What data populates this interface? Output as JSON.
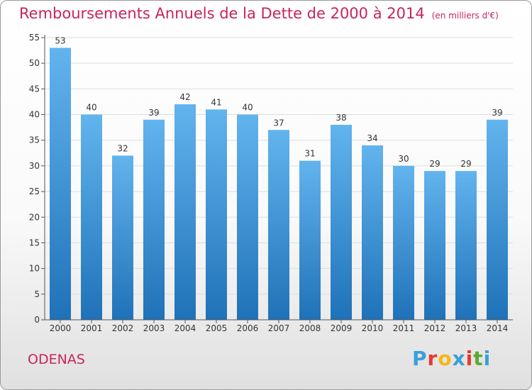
{
  "header": {
    "title": "Remboursements Annuels de la Dette de 2000 à 2014",
    "unit": "(en milliers d'€)"
  },
  "footer": {
    "city": "ODENAS",
    "logo_letters": [
      "P",
      "r",
      "o",
      "x",
      "i",
      "t",
      "i"
    ],
    "logo_colors": [
      "#3a9fd8",
      "#e8382e",
      "#f4b71b",
      "#3a9fd8",
      "#e8382e",
      "#5aaa32",
      "#3a9fd8"
    ]
  },
  "colors": {
    "title": "#c8245a",
    "bar_top": "#62b4ee",
    "bar_bottom": "#1f72b8",
    "axis": "#555555",
    "grid": "#dddddd"
  },
  "chart_data": {
    "type": "bar",
    "title": "Remboursements Annuels de la Dette de 2000 à 2014",
    "xlabel": "",
    "ylabel": "",
    "categories": [
      "2000",
      "2001",
      "2002",
      "2003",
      "2004",
      "2005",
      "2006",
      "2007",
      "2008",
      "2009",
      "2010",
      "2011",
      "2012",
      "2013",
      "2014"
    ],
    "values": [
      53,
      40,
      32,
      39,
      42,
      41,
      40,
      37,
      31,
      38,
      34,
      30,
      29,
      29,
      39
    ],
    "ylim": [
      0,
      55
    ],
    "yticks": [
      0,
      5,
      10,
      15,
      20,
      25,
      30,
      35,
      40,
      45,
      50,
      55
    ],
    "grid": true
  }
}
